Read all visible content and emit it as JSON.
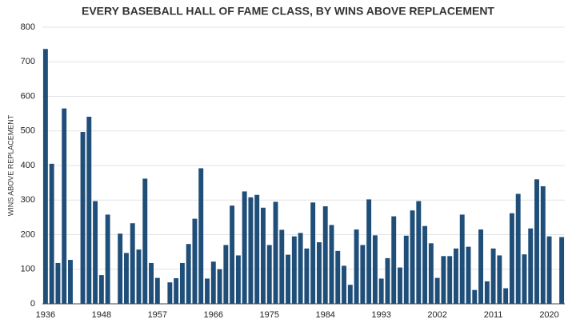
{
  "chart_data": {
    "type": "bar",
    "title": "EVERY BASEBALL HALL OF FAME CLASS, BY WINS ABOVE REPLACEMENT",
    "y_label": "WINS ABOVE REPLACEMENT",
    "categories": [
      "1936",
      null,
      null,
      null,
      null,
      null,
      null,
      null,
      null,
      "1948",
      null,
      null,
      null,
      null,
      null,
      null,
      null,
      null,
      "1957",
      null,
      null,
      null,
      null,
      null,
      null,
      null,
      null,
      "1966",
      null,
      null,
      null,
      null,
      null,
      null,
      null,
      null,
      "1975",
      null,
      null,
      null,
      null,
      null,
      null,
      null,
      null,
      "1984",
      null,
      null,
      null,
      null,
      null,
      null,
      null,
      null,
      "1993",
      null,
      null,
      null,
      null,
      null,
      null,
      null,
      null,
      "2002",
      null,
      null,
      null,
      null,
      null,
      null,
      null,
      null,
      "2011",
      null,
      null,
      null,
      null,
      null,
      null,
      null,
      null,
      "2020",
      null,
      null
    ],
    "values": [
      737,
      405,
      118,
      565,
      127,
      null,
      497,
      541,
      297,
      83,
      258,
      null,
      203,
      147,
      233,
      157,
      362,
      118,
      75,
      null,
      62,
      74,
      118,
      173,
      246,
      392,
      73,
      122,
      100,
      170,
      284,
      140,
      325,
      308,
      315,
      278,
      170,
      295,
      214,
      142,
      195,
      205,
      160,
      293,
      178,
      282,
      228,
      153,
      110,
      55,
      215,
      170,
      302,
      198,
      73,
      132,
      253,
      105,
      197,
      270,
      297,
      225,
      175,
      75,
      138,
      138,
      160,
      258,
      165,
      40,
      215,
      65,
      160,
      140,
      45,
      262,
      318,
      143,
      218,
      360,
      340,
      195,
      null,
      193
    ],
    "color": "#1f4e79",
    "ylim": [
      0,
      800
    ],
    "yticks": [
      0,
      100,
      200,
      300,
      400,
      500,
      600,
      700,
      800
    ],
    "grid": true
  }
}
